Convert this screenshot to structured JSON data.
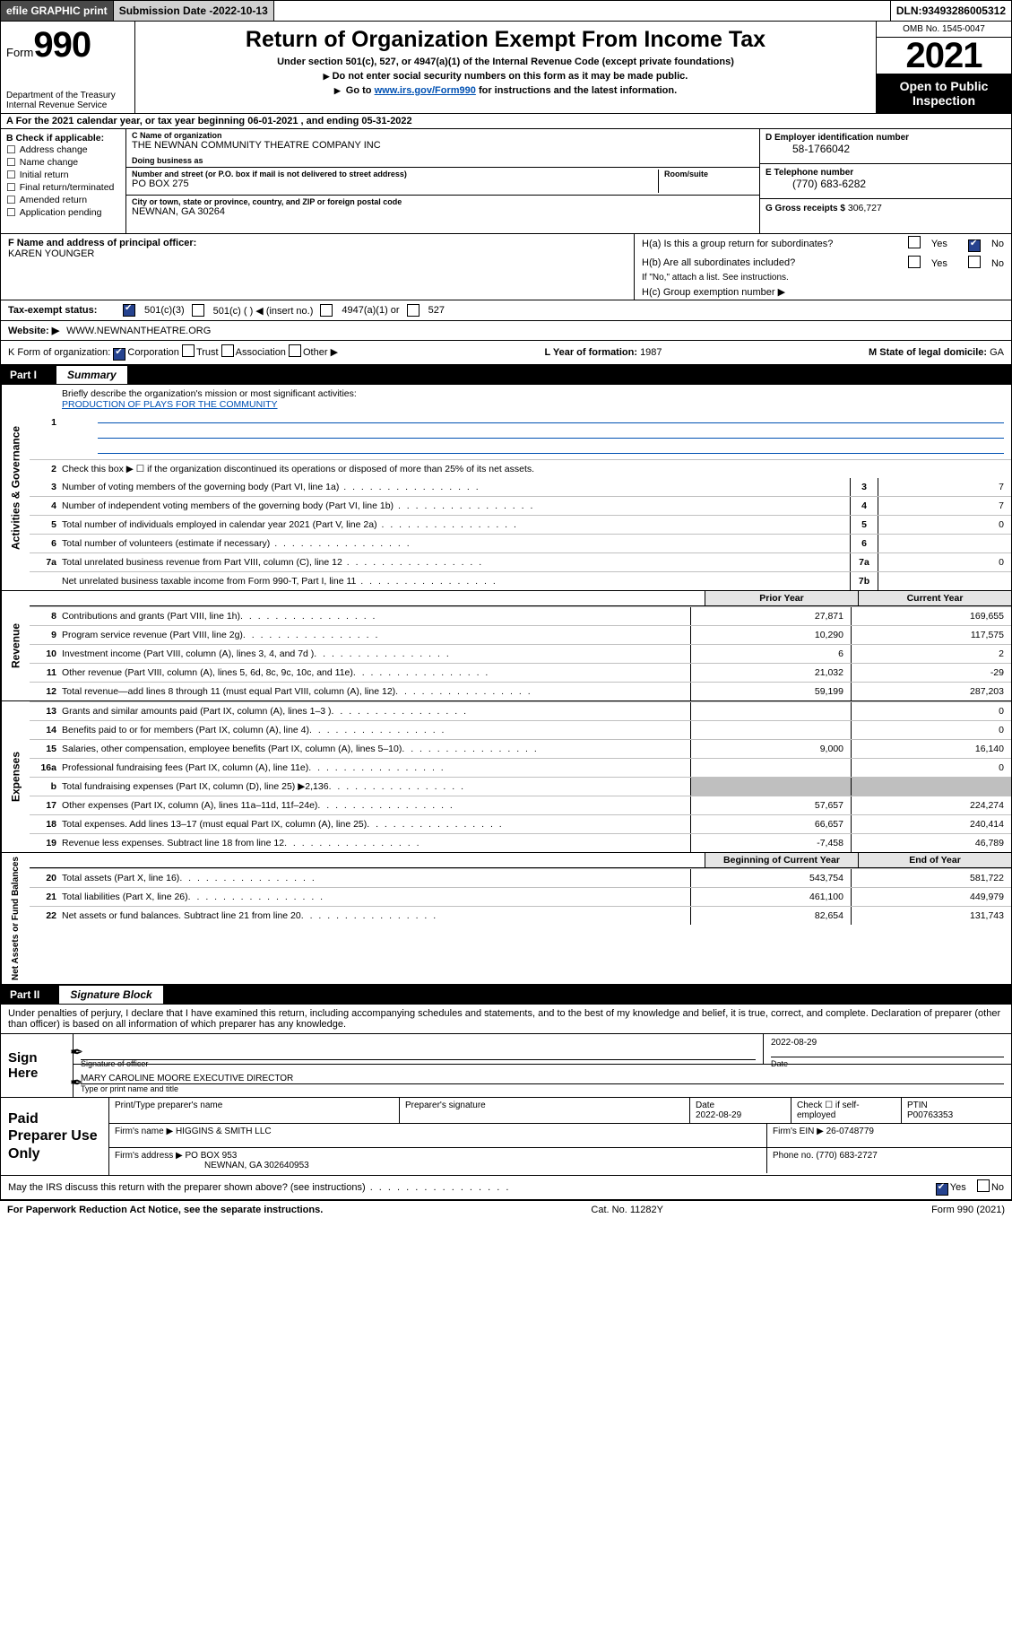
{
  "topbar": {
    "efile": "efile GRAPHIC print",
    "subdate_lbl": "Submission Date - ",
    "subdate": "2022-10-13",
    "dln_lbl": "DLN: ",
    "dln": "93493286005312"
  },
  "header": {
    "form_word": "Form",
    "form_num": "990",
    "dept": "Department of the Treasury\nInternal Revenue Service",
    "title": "Return of Organization Exempt From Income Tax",
    "sub1": "Under section 501(c), 527, or 4947(a)(1) of the Internal Revenue Code (except private foundations)",
    "sub2": "Do not enter social security numbers on this form as it may be made public.",
    "sub3_pre": "Go to ",
    "sub3_link": "www.irs.gov/Form990",
    "sub3_post": " for instructions and the latest information.",
    "omb": "OMB No. 1545-0047",
    "year": "2021",
    "openpub": "Open to Public Inspection"
  },
  "rowA": {
    "text_pre": "A For the 2021 calendar year, or tax year beginning ",
    "begin": "06-01-2021",
    "text_mid": " , and ending ",
    "end": "05-31-2022"
  },
  "B": {
    "label": "B Check if applicable:",
    "items": [
      "Address change",
      "Name change",
      "Initial return",
      "Final return/terminated",
      "Amended return",
      "Application pending"
    ]
  },
  "C": {
    "name_lbl": "C Name of organization",
    "name": "THE NEWNAN COMMUNITY THEATRE COMPANY INC",
    "dba_lbl": "Doing business as",
    "dba": "",
    "street_lbl": "Number and street (or P.O. box if mail is not delivered to street address)",
    "room_lbl": "Room/suite",
    "street": "PO BOX 275",
    "city_lbl": "City or town, state or province, country, and ZIP or foreign postal code",
    "city": "NEWNAN, GA  30264"
  },
  "D": {
    "ein_lbl": "D Employer identification number",
    "ein": "58-1766042",
    "tel_lbl": "E Telephone number",
    "tel": "(770) 683-6282",
    "gross_lbl": "G Gross receipts $",
    "gross": "306,727"
  },
  "F": {
    "lbl": "F Name and address of principal officer:",
    "val": "KAREN YOUNGER"
  },
  "H": {
    "a": "H(a)  Is this a group return for subordinates?",
    "b": "H(b)  Are all subordinates included?",
    "b_note": "If \"No,\" attach a list. See instructions.",
    "c": "H(c)  Group exemption number ▶",
    "yes": "Yes",
    "no": "No"
  },
  "I": {
    "lbl": "Tax-exempt status:",
    "o1": "501(c)(3)",
    "o2": "501(c) (  ) ◀ (insert no.)",
    "o3": "4947(a)(1) or",
    "o4": "527"
  },
  "J": {
    "lbl": "Website: ▶",
    "val": "WWW.NEWNANTHEATRE.ORG"
  },
  "K": {
    "lbl": "K Form of organization:",
    "o1": "Corporation",
    "o2": "Trust",
    "o3": "Association",
    "o4": "Other ▶"
  },
  "L": {
    "lbl": "L Year of formation: ",
    "val": "1987"
  },
  "M": {
    "lbl": "M State of legal domicile: ",
    "val": "GA"
  },
  "partI": {
    "num": "Part I",
    "title": "Summary"
  },
  "summary": {
    "line1_lbl": "Briefly describe the organization's mission or most significant activities:",
    "line1_val": "PRODUCTION OF PLAYS FOR THE COMMUNITY",
    "line2": "Check this box ▶ ☐  if the organization discontinued its operations or disposed of more than 25% of its net assets.",
    "rows": [
      {
        "n": "3",
        "t": "Number of voting members of the governing body (Part VI, line 1a)",
        "box": "3",
        "v": "7"
      },
      {
        "n": "4",
        "t": "Number of independent voting members of the governing body (Part VI, line 1b)",
        "box": "4",
        "v": "7"
      },
      {
        "n": "5",
        "t": "Total number of individuals employed in calendar year 2021 (Part V, line 2a)",
        "box": "5",
        "v": "0"
      },
      {
        "n": "6",
        "t": "Total number of volunteers (estimate if necessary)",
        "box": "6",
        "v": ""
      },
      {
        "n": "7a",
        "t": "Total unrelated business revenue from Part VIII, column (C), line 12",
        "box": "7a",
        "v": "0"
      },
      {
        "n": "",
        "t": "Net unrelated business taxable income from Form 990-T, Part I, line 11",
        "box": "7b",
        "v": ""
      }
    ],
    "side": "Activities & Governance"
  },
  "revenue": {
    "side": "Revenue",
    "head_prior": "Prior Year",
    "head_curr": "Current Year",
    "rows": [
      {
        "n": "8",
        "t": "Contributions and grants (Part VIII, line 1h)",
        "p": "27,871",
        "c": "169,655"
      },
      {
        "n": "9",
        "t": "Program service revenue (Part VIII, line 2g)",
        "p": "10,290",
        "c": "117,575"
      },
      {
        "n": "10",
        "t": "Investment income (Part VIII, column (A), lines 3, 4, and 7d )",
        "p": "6",
        "c": "2"
      },
      {
        "n": "11",
        "t": "Other revenue (Part VIII, column (A), lines 5, 6d, 8c, 9c, 10c, and 11e)",
        "p": "21,032",
        "c": "-29"
      },
      {
        "n": "12",
        "t": "Total revenue—add lines 8 through 11 (must equal Part VIII, column (A), line 12)",
        "p": "59,199",
        "c": "287,203"
      }
    ]
  },
  "expenses": {
    "side": "Expenses",
    "rows": [
      {
        "n": "13",
        "t": "Grants and similar amounts paid (Part IX, column (A), lines 1–3 )",
        "p": "",
        "c": "0"
      },
      {
        "n": "14",
        "t": "Benefits paid to or for members (Part IX, column (A), line 4)",
        "p": "",
        "c": "0"
      },
      {
        "n": "15",
        "t": "Salaries, other compensation, employee benefits (Part IX, column (A), lines 5–10)",
        "p": "9,000",
        "c": "16,140"
      },
      {
        "n": "16a",
        "t": "Professional fundraising fees (Part IX, column (A), line 11e)",
        "p": "",
        "c": "0"
      },
      {
        "n": "b",
        "t": "Total fundraising expenses (Part IX, column (D), line 25) ▶2,136",
        "p": "GRAY",
        "c": "GRAY"
      },
      {
        "n": "17",
        "t": "Other expenses (Part IX, column (A), lines 11a–11d, 11f–24e)",
        "p": "57,657",
        "c": "224,274"
      },
      {
        "n": "18",
        "t": "Total expenses. Add lines 13–17 (must equal Part IX, column (A), line 25)",
        "p": "66,657",
        "c": "240,414"
      },
      {
        "n": "19",
        "t": "Revenue less expenses. Subtract line 18 from line 12",
        "p": "-7,458",
        "c": "46,789"
      }
    ]
  },
  "net": {
    "side": "Net Assets or Fund Balances",
    "head_prior": "Beginning of Current Year",
    "head_curr": "End of Year",
    "rows": [
      {
        "n": "20",
        "t": "Total assets (Part X, line 16)",
        "p": "543,754",
        "c": "581,722"
      },
      {
        "n": "21",
        "t": "Total liabilities (Part X, line 26)",
        "p": "461,100",
        "c": "449,979"
      },
      {
        "n": "22",
        "t": "Net assets or fund balances. Subtract line 21 from line 20",
        "p": "82,654",
        "c": "131,743"
      }
    ]
  },
  "partII": {
    "num": "Part II",
    "title": "Signature Block"
  },
  "p2text": "Under penalties of perjury, I declare that I have examined this return, including accompanying schedules and statements, and to the best of my knowledge and belief, it is true, correct, and complete. Declaration of preparer (other than officer) is based on all information of which preparer has any knowledge.",
  "sign": {
    "lbl": "Sign Here",
    "sig_lbl": "Signature of officer",
    "date_lbl": "Date",
    "date": "2022-08-29",
    "name": "MARY CAROLINE MOORE  EXECUTIVE DIRECTOR",
    "name_lbl": "Type or print name and title"
  },
  "prep": {
    "lbl": "Paid Preparer Use Only",
    "h1": "Print/Type preparer's name",
    "h2": "Preparer's signature",
    "h3": "Date",
    "h4": "Check ☐ if self-employed",
    "h5": "PTIN",
    "date": "2022-08-29",
    "ptin": "P00763353",
    "firm_lbl": "Firm's name   ▶",
    "firm": "HIGGINS & SMITH LLC",
    "ein_lbl": "Firm's EIN ▶",
    "ein": "26-0748779",
    "addr_lbl": "Firm's address ▶",
    "addr": "PO BOX 953",
    "addr2": "NEWNAN, GA  302640953",
    "phone_lbl": "Phone no.",
    "phone": "(770) 683-2727"
  },
  "mayirs": {
    "q": "May the IRS discuss this return with the preparer shown above? (see instructions)",
    "yes": "Yes",
    "no": "No"
  },
  "footer": {
    "l": "For Paperwork Reduction Act Notice, see the separate instructions.",
    "m": "Cat. No. 11282Y",
    "r": "Form 990 (2021)"
  }
}
